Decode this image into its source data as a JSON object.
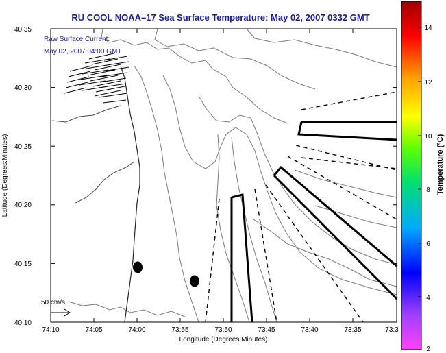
{
  "figure": {
    "title": "RU COOL  NOAA–17  Sea Surface Temperature:  May 02, 2007 0332 GMT",
    "annotation_line1": "Raw Surface Current:",
    "annotation_line2": "May 02, 2007 04:00 GMT",
    "scale_label": "50 cm/s",
    "xlabel": "Longitude (Degrees:Minutes)",
    "ylabel": "Latitude (Degrees:Minutes)",
    "colorbar_label": "Temperature (°C)"
  },
  "axes": {
    "x_ticks": [
      "74:10",
      "74:05",
      "74:00",
      "73:55",
      "73:50",
      "73:45",
      "73:40",
      "73:35",
      "73:3"
    ],
    "y_ticks": [
      "40:35",
      "40:30",
      "40:25",
      "40:20",
      "40:15",
      "40:10"
    ],
    "colorbar_ticks": [
      "14",
      "12",
      "10",
      "8",
      "6",
      "4",
      "2"
    ]
  },
  "colors": {
    "title": "#1a1aa0",
    "annotation": "#1a1aa0",
    "contour": "#7a7a7a",
    "colorbar_stops": [
      "#e800e8",
      "#a040ff",
      "#0000ff",
      "#00c8ff",
      "#00ff40",
      "#c8ff00",
      "#ffff00",
      "#ff9900",
      "#ff0000",
      "#b00000"
    ]
  },
  "chart_data": {
    "type": "map",
    "xlim_deg_min": [
      "74:10",
      "73:30"
    ],
    "ylim_deg_min": [
      "40:10",
      "40:35"
    ],
    "colorbar_range_c": [
      2,
      15
    ],
    "markers": [
      {
        "lon": "73:59",
        "lat": "40:14.7"
      },
      {
        "lon": "73:52.5",
        "lat": "40:13.4"
      }
    ],
    "vector_scale_cm_s": 50
  }
}
